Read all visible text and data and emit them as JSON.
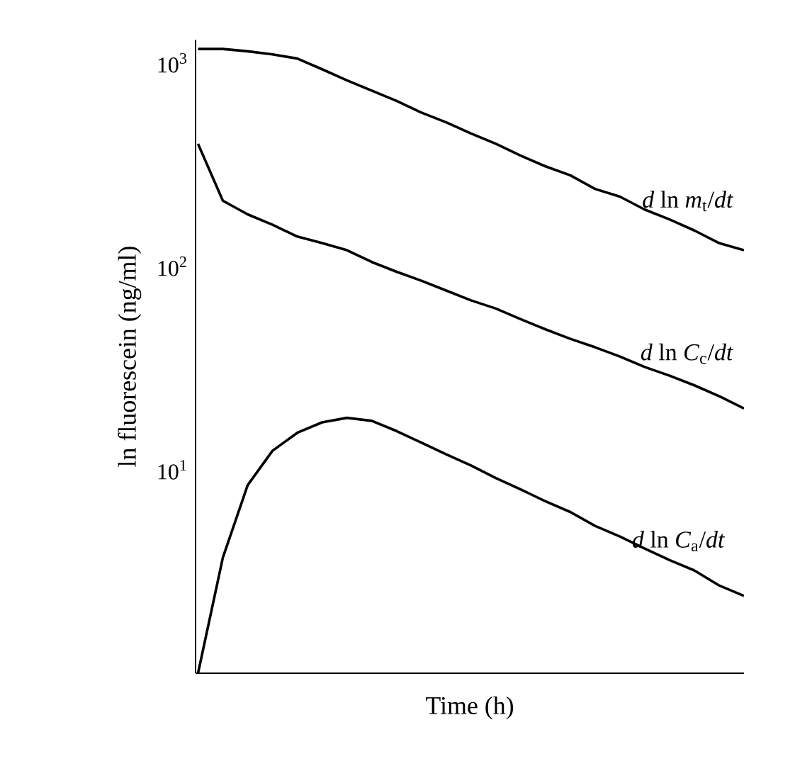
{
  "chart_data": {
    "type": "line",
    "xlabel": "Time (h)",
    "ylabel": "ln fluorescein (ng/ml)",
    "log": "y",
    "ylim": [
      1,
      1300
    ],
    "yticks": [
      {
        "value": 10,
        "label": "10$^{1}$"
      },
      {
        "value": 100,
        "label": "10$^{2}$"
      },
      {
        "value": 1000,
        "label": "10$^{3}$"
      }
    ],
    "tick_labels": "y",
    "grid": false,
    "legend": false,
    "marker": "none",
    "line_style": "solid",
    "categories": [
      null,
      null,
      null,
      null,
      null,
      null,
      null,
      null,
      null,
      null,
      null,
      null,
      null,
      null,
      null,
      null,
      null,
      null,
      null,
      null,
      null,
      null,
      null
    ],
    "series": [
      {
        "name": "*d* ln *m*$_{t}$/*dt*",
        "color": "#000000",
        "values": [
          1170,
          1170,
          1140,
          1100,
          1050,
          930,
          820,
          730,
          650,
          570,
          510,
          450,
          400,
          350,
          310,
          280,
          240,
          220,
          190,
          170,
          150,
          130,
          120
        ]
      },
      {
        "name": "*d* ln *C*$_{c}$/*dt*",
        "color": "#000000",
        "values": [
          400,
          210,
          180,
          160,
          140,
          130,
          120,
          105,
          94,
          85,
          76,
          68,
          62,
          55,
          49,
          44,
          40,
          36,
          32,
          29,
          26,
          23,
          20
        ]
      },
      {
        "name": "*d* ln *C*$_{a}$/*dt*",
        "color": "#000000",
        "values": [
          1,
          3.7,
          8.4,
          12.4,
          15.2,
          17.1,
          18,
          17.4,
          15.5,
          13.6,
          11.9,
          10.5,
          9.1,
          8.0,
          7.0,
          6.2,
          5.3,
          4.7,
          4.1,
          3.6,
          3.2,
          2.7,
          2.4
        ]
      }
    ]
  }
}
